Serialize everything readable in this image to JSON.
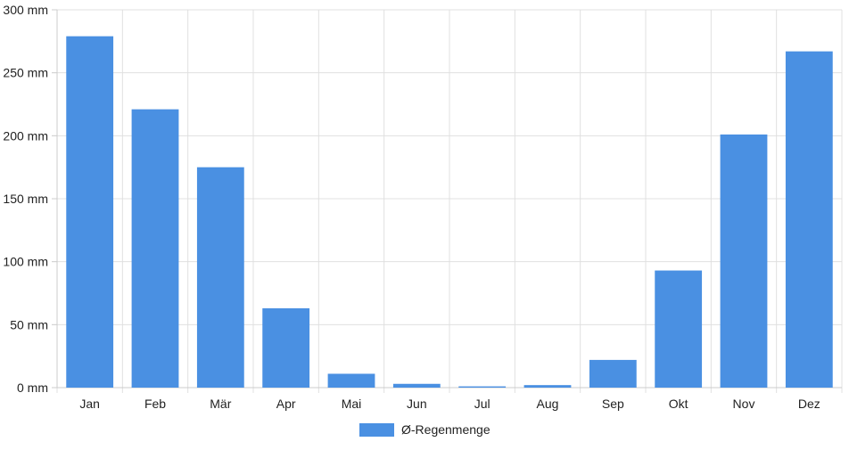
{
  "chart_data": {
    "type": "bar",
    "categories": [
      "Jan",
      "Feb",
      "Mär",
      "Apr",
      "Mai",
      "Jun",
      "Jul",
      "Aug",
      "Sep",
      "Okt",
      "Nov",
      "Dez"
    ],
    "series": [
      {
        "name": "Ø-Regenmenge",
        "values": [
          279,
          221,
          175,
          63,
          11,
          3,
          1,
          2,
          22,
          93,
          201,
          267
        ],
        "color": "#4a90e2"
      }
    ],
    "ylim": [
      0,
      300
    ],
    "yticks": [
      0,
      50,
      100,
      150,
      200,
      250,
      300
    ],
    "yunit": "mm",
    "title": "",
    "xlabel": "",
    "ylabel": "",
    "grid": true,
    "legend_position": "bottom"
  }
}
